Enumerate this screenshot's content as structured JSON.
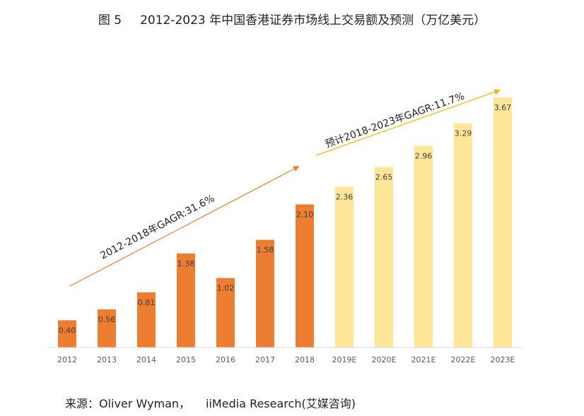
{
  "title": {
    "figure_no": "图 5",
    "text": "2012-2023 年中国香港证券市场线上交易额及预测（万亿美元）"
  },
  "source": {
    "label": "来源：",
    "item1": "Oliver Wyman，",
    "item2": "iiMedia Research(艾媒咨询)"
  },
  "colors": {
    "actual": "#ED7D31",
    "forecast": "#FFE699",
    "arrow1": "#ED7D31",
    "arrow2": "#F5B400",
    "axis": "#D9D9D9",
    "label_text": "#404040",
    "tick_text": "#595959"
  },
  "chart_data": {
    "type": "bar",
    "title": "2012-2023 年中国香港证券市场线上交易额及预测（万亿美元）",
    "xlabel": "",
    "ylabel": "",
    "unit": "万亿美元",
    "ylim": [
      0,
      3.67
    ],
    "categories": [
      "2012",
      "2013",
      "2014",
      "2015",
      "2016",
      "2017",
      "2018",
      "2019E",
      "2020E",
      "2021E",
      "2022E",
      "2023E"
    ],
    "values": [
      0.4,
      0.56,
      0.81,
      1.38,
      1.02,
      1.58,
      2.1,
      2.36,
      2.65,
      2.96,
      3.29,
      3.67
    ],
    "value_labels": [
      "0.40",
      "0.56",
      "0.81",
      "1.38",
      "1.02",
      "1.58",
      "2.10",
      "2.36",
      "2.65",
      "2.96",
      "3.29",
      "3.67"
    ],
    "series_kind": [
      "actual",
      "actual",
      "actual",
      "actual",
      "actual",
      "actual",
      "actual",
      "forecast",
      "forecast",
      "forecast",
      "forecast",
      "forecast"
    ],
    "annotations": [
      {
        "text": "2012-2018年GAGR:31.6%",
        "kind": "actual"
      },
      {
        "text": "预计2018-2023年GAGR:11.7%",
        "kind": "forecast"
      }
    ],
    "grid": false,
    "legend": "none"
  }
}
